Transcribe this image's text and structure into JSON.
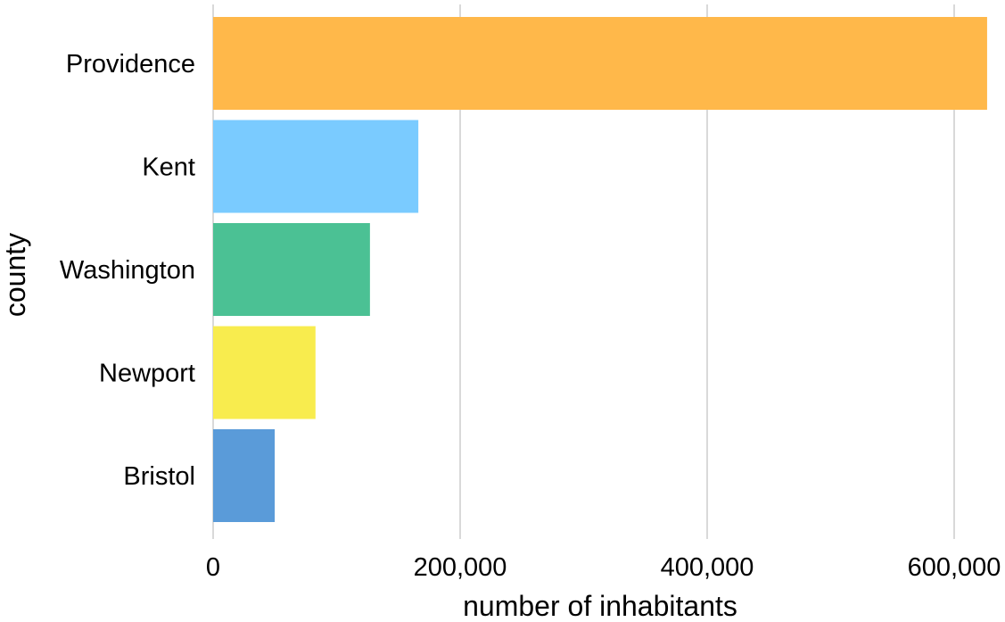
{
  "chart_data": {
    "type": "bar",
    "orientation": "horizontal",
    "title": "",
    "xlabel": "number of inhabitants",
    "ylabel": "county",
    "xlim": [
      0,
      630000
    ],
    "xticks": [
      0,
      200000,
      400000,
      600000
    ],
    "xtick_labels": [
      "0",
      "200,000",
      "400,000",
      "600,000"
    ],
    "grid": "vertical gridlines",
    "legend": "none",
    "categories": [
      "Providence",
      "Kent",
      "Washington",
      "Newport",
      "Bristol"
    ],
    "values": [
      626667,
      166158,
      126979,
      82888,
      49875
    ],
    "colors": [
      "#FFB84A",
      "#7ACBFF",
      "#4BC194",
      "#F8EC4E",
      "#5A9BD9"
    ]
  }
}
